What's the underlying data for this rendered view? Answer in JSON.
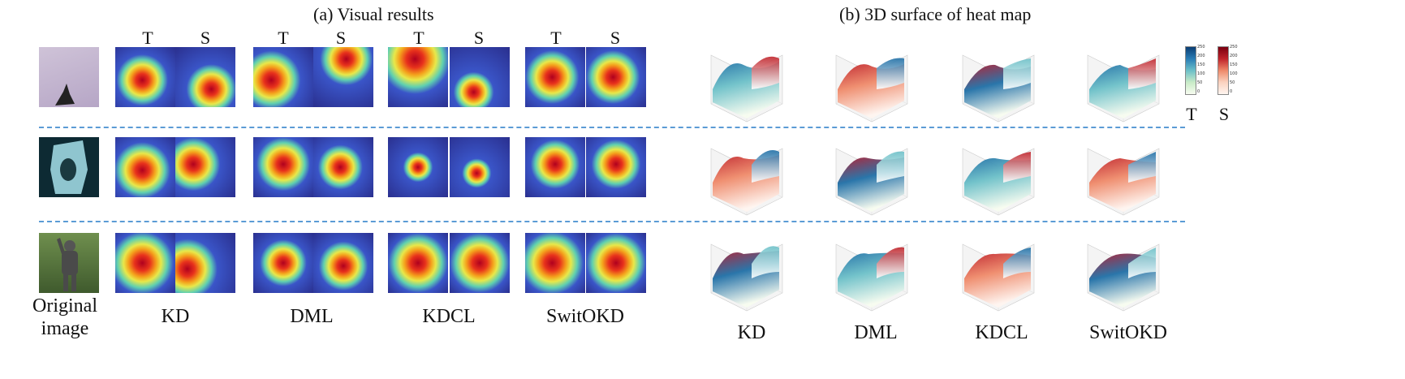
{
  "panel_a": {
    "title": "(a) Visual results",
    "column_headers": [
      "T",
      "S",
      "T",
      "S",
      "T",
      "S",
      "T",
      "S"
    ],
    "method_labels": [
      "KD",
      "DML",
      "KDCL",
      "SwitOKD"
    ],
    "original_label_line1": "Original",
    "original_label_line2": "image",
    "rows": [
      {
        "name": "rabbit-row",
        "base": "#b9a9c9",
        "cells": [
          {
            "hot": [
              0.45,
              0.55
            ],
            "spread": 0.55
          },
          {
            "hot": [
              0.6,
              0.7
            ],
            "spread": 0.45
          },
          {
            "hot": [
              0.3,
              0.55
            ],
            "spread": 0.55
          },
          {
            "hot": [
              0.55,
              0.2
            ],
            "spread": 0.45
          },
          {
            "hot": [
              0.45,
              0.2
            ],
            "spread": 0.6
          },
          {
            "hot": [
              0.4,
              0.75
            ],
            "spread": 0.35
          },
          {
            "hot": [
              0.45,
              0.5
            ],
            "spread": 0.6
          },
          {
            "hot": [
              0.45,
              0.5
            ],
            "spread": 0.6
          }
        ]
      },
      {
        "name": "face-row",
        "base": "#1f5c6e",
        "cells": [
          {
            "hot": [
              0.45,
              0.55
            ],
            "spread": 0.6
          },
          {
            "hot": [
              0.3,
              0.45
            ],
            "spread": 0.5
          },
          {
            "hot": [
              0.5,
              0.45
            ],
            "spread": 0.6
          },
          {
            "hot": [
              0.45,
              0.5
            ],
            "spread": 0.5
          },
          {
            "hot": [
              0.5,
              0.5
            ],
            "spread": 0.35
          },
          {
            "hot": [
              0.45,
              0.6
            ],
            "spread": 0.3
          },
          {
            "hot": [
              0.5,
              0.45
            ],
            "spread": 0.55
          },
          {
            "hot": [
              0.5,
              0.45
            ],
            "spread": 0.55
          }
        ]
      },
      {
        "name": "statue-row",
        "base": "#4f6e3a",
        "cells": [
          {
            "hot": [
              0.45,
              0.5
            ],
            "spread": 0.7
          },
          {
            "hot": [
              0.2,
              0.6
            ],
            "spread": 0.5
          },
          {
            "hot": [
              0.5,
              0.5
            ],
            "spread": 0.55
          },
          {
            "hot": [
              0.5,
              0.55
            ],
            "spread": 0.55
          },
          {
            "hot": [
              0.5,
              0.5
            ],
            "spread": 0.7
          },
          {
            "hot": [
              0.5,
              0.5
            ],
            "spread": 0.7
          },
          {
            "hot": [
              0.45,
              0.5
            ],
            "spread": 0.7
          },
          {
            "hot": [
              0.5,
              0.5
            ],
            "spread": 0.7
          }
        ]
      }
    ]
  },
  "panel_b": {
    "title": "(b) 3D surface of heat map",
    "method_labels": [
      "KD",
      "DML",
      "KDCL",
      "SwitOKD"
    ],
    "colorbar_T_label": "T",
    "colorbar_S_label": "S",
    "colorbar_T_ticks": [
      "250",
      "200",
      "150",
      "100",
      "50",
      "0"
    ],
    "colorbar_S_ticks": [
      "250",
      "200",
      "150",
      "100",
      "50",
      "0"
    ],
    "colors": {
      "teacher_blue": "#1f6fa6",
      "student_red": "#b2182b",
      "separator": "#5b9bd5"
    },
    "surface_icons": [
      [
        "3d-surface-icon",
        "3d-surface-icon",
        "3d-surface-icon",
        "3d-surface-icon"
      ],
      [
        "3d-surface-icon",
        "3d-surface-icon",
        "3d-surface-icon",
        "3d-surface-icon"
      ],
      [
        "3d-surface-icon",
        "3d-surface-icon",
        "3d-surface-icon",
        "3d-surface-icon"
      ]
    ]
  }
}
